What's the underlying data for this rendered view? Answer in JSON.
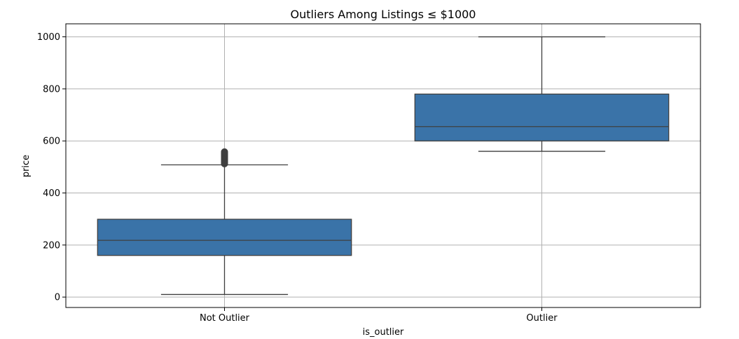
{
  "chart_data": {
    "type": "box",
    "title": "Outliers Among Listings ≤ $1000",
    "xlabel": "is_outlier",
    "ylabel": "price",
    "categories": [
      "Not Outlier",
      "Outlier"
    ],
    "ylim": [
      -40,
      1050
    ],
    "yticks": [
      0,
      200,
      400,
      600,
      800,
      1000
    ],
    "grid": true,
    "box_color": "#3a73a8",
    "line_color": "#3f3f3f",
    "boxes": [
      {
        "category": "Not Outlier",
        "whisker_low": 10,
        "q1": 160,
        "median": 218,
        "q3": 299,
        "whisker_high": 508,
        "outliers": [
          512,
          515,
          518,
          520,
          522,
          525,
          528,
          530,
          533,
          535,
          538,
          540,
          543,
          545,
          548,
          550,
          553,
          555,
          558
        ]
      },
      {
        "category": "Outlier",
        "whisker_low": 560,
        "q1": 600,
        "median": 655,
        "q3": 780,
        "whisker_high": 1000,
        "outliers": []
      }
    ]
  }
}
